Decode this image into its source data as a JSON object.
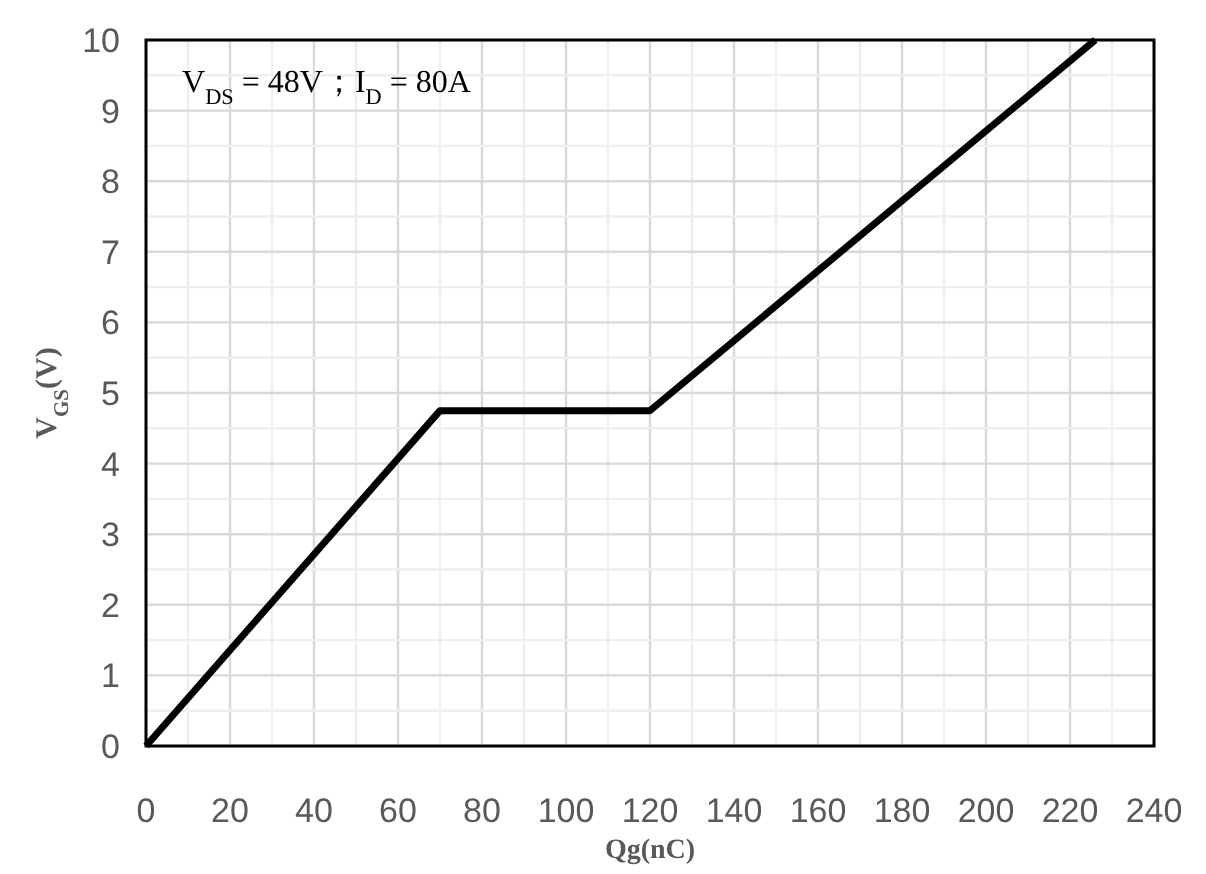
{
  "chart_data": {
    "type": "line",
    "xlabel": "Qg(nC)",
    "ylabel": "V$_{GS}$(V)",
    "annotations": [
      "V$_{DS}$ = 48V；I$_{D}$ = 80A"
    ],
    "x": [
      0,
      70,
      120,
      226
    ],
    "series": [
      {
        "color": "#000000",
        "values": [
          0,
          4.75,
          4.75,
          10
        ]
      }
    ],
    "xlim": [
      0,
      240
    ],
    "ylim": [
      0,
      10
    ],
    "xticks": [
      0,
      20,
      40,
      60,
      80,
      100,
      120,
      140,
      160,
      180,
      200,
      220,
      240
    ],
    "yticks": [
      0,
      1,
      2,
      3,
      4,
      5,
      6,
      7,
      8,
      9,
      10
    ],
    "grid": true,
    "line_style": "solid"
  }
}
